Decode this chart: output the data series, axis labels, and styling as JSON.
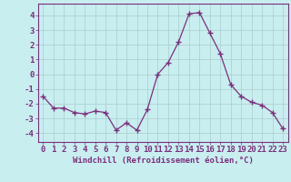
{
  "x": [
    0,
    1,
    2,
    3,
    4,
    5,
    6,
    7,
    8,
    9,
    10,
    11,
    12,
    13,
    14,
    15,
    16,
    17,
    18,
    19,
    20,
    21,
    22,
    23
  ],
  "y": [
    -1.5,
    -2.3,
    -2.3,
    -2.6,
    -2.7,
    -2.5,
    -2.6,
    -3.8,
    -3.3,
    -3.8,
    -2.4,
    0.0,
    0.8,
    2.2,
    4.1,
    4.2,
    2.8,
    1.4,
    -0.7,
    -1.5,
    -1.9,
    -2.1,
    -2.6,
    -3.7
  ],
  "line_color": "#7b2f7b",
  "marker": "+",
  "marker_size": 4,
  "marker_linewidth": 1.0,
  "bg_color": "#c8eef0",
  "grid_color": "#aacccc",
  "xlabel": "Windchill (Refroidissement éolien,°C)",
  "ylabel_ticks": [
    -4,
    -3,
    -2,
    -1,
    0,
    1,
    2,
    3,
    4
  ],
  "xlim": [
    -0.5,
    23.5
  ],
  "ylim": [
    -4.6,
    4.8
  ],
  "xlabel_fontsize": 6.5,
  "tick_fontsize": 6.5,
  "line_color_rgb": "#7b2f7b",
  "spine_color": "#7b2f7b"
}
